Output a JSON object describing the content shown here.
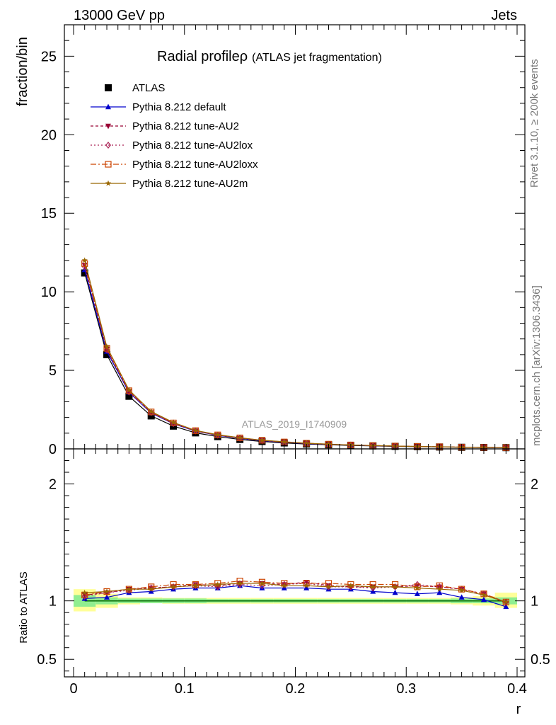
{
  "header": {
    "left": "13000 GeV pp",
    "right": "Jets"
  },
  "plot_title": {
    "main": "Radial profile",
    "symbol": "ρ",
    "sub": "(ATLAS jet fragmentation)"
  },
  "side_labels": {
    "rivet": "Rivet 3.1.10, ≥ 200k events",
    "mcplots": "mcplots.cern.ch [arXiv:1306.3436]"
  },
  "watermark": "ATLAS_2019_I1740909",
  "colors": {
    "band_inner": "#90ee90",
    "band_outer": "#ffff99"
  },
  "chart_data": [
    {
      "type": "line",
      "panel": "main",
      "xlabel": "",
      "ylabel": "fraction/bin",
      "xlim": [
        0,
        0.4
      ],
      "ylim": [
        0,
        27
      ],
      "yticks": [
        0,
        5,
        10,
        15,
        20,
        25
      ],
      "ytick_labels": [
        "0",
        "5",
        "10",
        "15",
        "20",
        "25"
      ],
      "x": [
        0.01,
        0.03,
        0.05,
        0.07,
        0.09,
        0.11,
        0.13,
        0.15,
        0.17,
        0.19,
        0.21,
        0.23,
        0.25,
        0.27,
        0.29,
        0.31,
        0.33,
        0.35,
        0.37,
        0.39
      ],
      "series": [
        {
          "name": "ATLAS",
          "color": "#000000",
          "marker": "square",
          "dash": "",
          "values": [
            11.2,
            6.0,
            3.35,
            2.1,
            1.45,
            1.02,
            0.78,
            0.6,
            0.47,
            0.38,
            0.31,
            0.26,
            0.22,
            0.19,
            0.16,
            0.14,
            0.12,
            0.1,
            0.09,
            0.08
          ]
        },
        {
          "name": "Pythia 8.212 default",
          "color": "#0000cc",
          "marker": "triangle-up",
          "dash": "",
          "values": [
            11.4,
            6.2,
            3.6,
            2.28,
            1.6,
            1.13,
            0.86,
            0.67,
            0.52,
            0.42,
            0.34,
            0.285,
            0.241,
            0.204,
            0.171,
            0.148,
            0.128,
            0.104,
            0.091,
            0.077
          ]
        },
        {
          "name": "Pythia 8.212 tune-AU2",
          "color": "#990033",
          "marker": "triangle-down",
          "dash": "4,3",
          "values": [
            11.7,
            6.35,
            3.65,
            2.32,
            1.62,
            1.15,
            0.88,
            0.69,
            0.54,
            0.43,
            0.35,
            0.29,
            0.25,
            0.21,
            0.18,
            0.155,
            0.135,
            0.11,
            0.095,
            0.08
          ]
        },
        {
          "name": "Pythia 8.212 tune-AU2lox",
          "color": "#aa2255",
          "marker": "diamond-open",
          "dash": "2,3",
          "values": [
            11.6,
            6.3,
            3.62,
            2.31,
            1.61,
            1.14,
            0.87,
            0.68,
            0.53,
            0.43,
            0.35,
            0.29,
            0.245,
            0.205,
            0.175,
            0.152,
            0.132,
            0.108,
            0.094,
            0.079
          ]
        },
        {
          "name": "Pythia 8.212 tune-AU2loxx",
          "color": "#cc4400",
          "marker": "square-open",
          "dash": "8,3,2,3",
          "values": [
            11.8,
            6.4,
            3.7,
            2.35,
            1.65,
            1.16,
            0.89,
            0.7,
            0.55,
            0.44,
            0.36,
            0.3,
            0.25,
            0.21,
            0.18,
            0.155,
            0.135,
            0.11,
            0.095,
            0.08
          ]
        },
        {
          "name": "Pythia 8.212 tune-AU2m",
          "color": "#996600",
          "marker": "star",
          "dash": "",
          "values": [
            12.0,
            6.5,
            3.75,
            2.38,
            1.68,
            1.17,
            0.9,
            0.71,
            0.55,
            0.45,
            0.36,
            0.3,
            0.25,
            0.21,
            0.18,
            0.155,
            0.135,
            0.11,
            0.095,
            0.08
          ]
        }
      ]
    },
    {
      "type": "line",
      "panel": "ratio",
      "xlabel": "r",
      "ylabel": "Ratio to ATLAS",
      "xlim": [
        0,
        0.4
      ],
      "ylim": [
        0.35,
        2.3
      ],
      "xticks": [
        0,
        0.1,
        0.2,
        0.3,
        0.4
      ],
      "xtick_labels": [
        "0",
        "0.1",
        "0.2",
        "0.3",
        "0.4"
      ],
      "yticks": [
        0.5,
        1,
        2
      ],
      "ytick_labels": [
        "0.5",
        "1",
        "2"
      ],
      "band_edges": [
        0.0,
        0.02,
        0.04,
        0.06,
        0.08,
        0.1,
        0.12,
        0.14,
        0.16,
        0.18,
        0.2,
        0.22,
        0.24,
        0.26,
        0.28,
        0.3,
        0.32,
        0.34,
        0.36,
        0.38,
        0.4
      ],
      "band_inner": [
        [
          0.95,
          1.05
        ],
        [
          0.97,
          1.03
        ],
        [
          0.98,
          1.02
        ],
        [
          0.98,
          1.02
        ],
        [
          0.98,
          1.02
        ],
        [
          0.98,
          1.02
        ],
        [
          0.985,
          1.015
        ],
        [
          0.985,
          1.015
        ],
        [
          0.985,
          1.015
        ],
        [
          0.985,
          1.015
        ],
        [
          0.985,
          1.015
        ],
        [
          0.985,
          1.015
        ],
        [
          0.985,
          1.015
        ],
        [
          0.985,
          1.015
        ],
        [
          0.985,
          1.015
        ],
        [
          0.985,
          1.015
        ],
        [
          0.985,
          1.015
        ],
        [
          0.98,
          1.02
        ],
        [
          0.98,
          1.02
        ],
        [
          0.97,
          1.03
        ]
      ],
      "band_outer": [
        [
          0.91,
          1.1
        ],
        [
          0.94,
          1.06
        ],
        [
          0.97,
          1.03
        ],
        [
          0.98,
          1.03
        ],
        [
          0.975,
          1.025
        ],
        [
          0.975,
          1.025
        ],
        [
          0.975,
          1.025
        ],
        [
          0.975,
          1.025
        ],
        [
          0.975,
          1.025
        ],
        [
          0.975,
          1.025
        ],
        [
          0.975,
          1.025
        ],
        [
          0.975,
          1.025
        ],
        [
          0.975,
          1.025
        ],
        [
          0.975,
          1.025
        ],
        [
          0.975,
          1.025
        ],
        [
          0.975,
          1.025
        ],
        [
          0.975,
          1.025
        ],
        [
          0.97,
          1.03
        ],
        [
          0.96,
          1.04
        ],
        [
          0.94,
          1.07
        ]
      ],
      "x": [
        0.01,
        0.03,
        0.05,
        0.07,
        0.09,
        0.11,
        0.13,
        0.15,
        0.17,
        0.19,
        0.21,
        0.23,
        0.25,
        0.27,
        0.29,
        0.31,
        0.33,
        0.35,
        0.37,
        0.39
      ],
      "series": [
        {
          "name": "ATLAS",
          "color": "#000000",
          "marker": "",
          "dash": "",
          "values": [
            1,
            1,
            1,
            1,
            1,
            1,
            1,
            1,
            1,
            1,
            1,
            1,
            1,
            1,
            1,
            1,
            1,
            1,
            1,
            1
          ]
        },
        {
          "name": "Pythia 8.212 default",
          "color": "#0000cc",
          "marker": "triangle-up",
          "dash": "",
          "values": [
            1.02,
            1.03,
            1.07,
            1.08,
            1.1,
            1.11,
            1.11,
            1.13,
            1.11,
            1.11,
            1.11,
            1.1,
            1.1,
            1.08,
            1.07,
            1.06,
            1.07,
            1.03,
            1.01,
            0.95
          ]
        },
        {
          "name": "Pythia 8.212 tune-AU2",
          "color": "#990033",
          "marker": "triangle-down",
          "dash": "4,3",
          "values": [
            1.05,
            1.07,
            1.1,
            1.11,
            1.12,
            1.14,
            1.13,
            1.15,
            1.15,
            1.14,
            1.16,
            1.13,
            1.12,
            1.12,
            1.12,
            1.13,
            1.12,
            1.1,
            1.06,
            0.98
          ]
        },
        {
          "name": "Pythia 8.212 tune-AU2lox",
          "color": "#aa2255",
          "marker": "diamond-open",
          "dash": "2,3",
          "values": [
            1.04,
            1.07,
            1.09,
            1.11,
            1.12,
            1.13,
            1.12,
            1.14,
            1.13,
            1.14,
            1.15,
            1.12,
            1.12,
            1.11,
            1.12,
            1.14,
            1.12,
            1.1,
            1.06,
            0.99
          ]
        },
        {
          "name": "Pythia 8.212 tune-AU2loxx",
          "color": "#cc4400",
          "marker": "square-open",
          "dash": "8,3,2,3",
          "values": [
            1.05,
            1.08,
            1.1,
            1.12,
            1.14,
            1.14,
            1.15,
            1.17,
            1.16,
            1.15,
            1.15,
            1.15,
            1.14,
            1.14,
            1.14,
            1.12,
            1.13,
            1.1,
            1.06,
            0.99
          ]
        },
        {
          "name": "Pythia 8.212 tune-AU2m",
          "color": "#996600",
          "marker": "star",
          "dash": "",
          "values": [
            1.07,
            1.08,
            1.1,
            1.1,
            1.12,
            1.13,
            1.14,
            1.15,
            1.15,
            1.13,
            1.13,
            1.12,
            1.13,
            1.12,
            1.12,
            1.11,
            1.1,
            1.09,
            1.05,
            0.99
          ]
        }
      ]
    }
  ]
}
